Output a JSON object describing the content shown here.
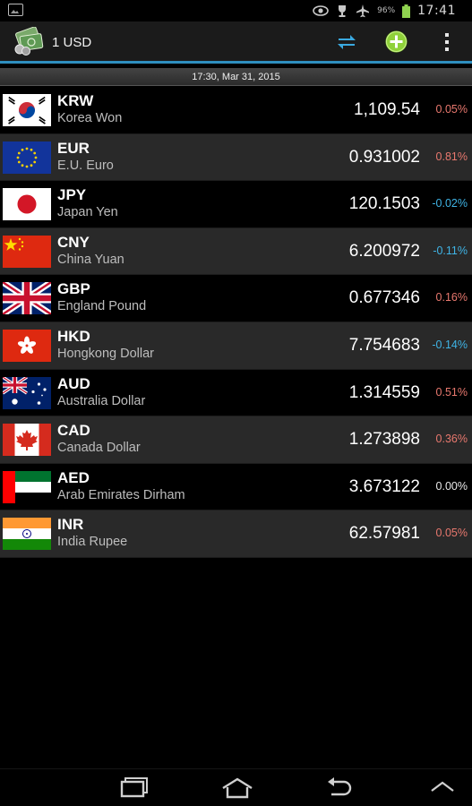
{
  "status_bar": {
    "battery_pct": "96%",
    "time": "17:41"
  },
  "header": {
    "title": "1 USD",
    "icons": [
      "money-icon",
      "swap-icon",
      "add-icon",
      "overflow-menu-icon"
    ]
  },
  "timestamp": "17:30, Mar 31, 2015",
  "rates": [
    {
      "code": "KRW",
      "name": "Korea Won",
      "rate": "1,109.54",
      "change": "0.05%",
      "trend": "up",
      "flag": "kr"
    },
    {
      "code": "EUR",
      "name": "E.U. Euro",
      "rate": "0.931002",
      "change": "0.81%",
      "trend": "up",
      "flag": "eu"
    },
    {
      "code": "JPY",
      "name": "Japan Yen",
      "rate": "120.1503",
      "change": "-0.02%",
      "trend": "down",
      "flag": "jp"
    },
    {
      "code": "CNY",
      "name": "China Yuan",
      "rate": "6.200972",
      "change": "-0.11%",
      "trend": "down",
      "flag": "cn"
    },
    {
      "code": "GBP",
      "name": "England Pound",
      "rate": "0.677346",
      "change": "0.16%",
      "trend": "up",
      "flag": "gb"
    },
    {
      "code": "HKD",
      "name": "Hongkong Dollar",
      "rate": "7.754683",
      "change": "-0.14%",
      "trend": "down",
      "flag": "hk"
    },
    {
      "code": "AUD",
      "name": "Australia Dollar",
      "rate": "1.314559",
      "change": "0.51%",
      "trend": "up",
      "flag": "au"
    },
    {
      "code": "CAD",
      "name": "Canada Dollar",
      "rate": "1.273898",
      "change": "0.36%",
      "trend": "up",
      "flag": "ca"
    },
    {
      "code": "AED",
      "name": "Arab Emirates Dirham",
      "rate": "3.673122",
      "change": "0.00%",
      "trend": "flat",
      "flag": "ae"
    },
    {
      "code": "INR",
      "name": "India Rupee",
      "rate": "62.57981",
      "change": "0.05%",
      "trend": "up",
      "flag": "in"
    }
  ],
  "colors": {
    "accent": "#2f8fbf",
    "up": "#e8786e",
    "down": "#3fb4e6",
    "row_alt": "#292929"
  },
  "nav": [
    "recent-apps-icon",
    "home-icon",
    "back-icon",
    "menu-up-icon"
  ]
}
